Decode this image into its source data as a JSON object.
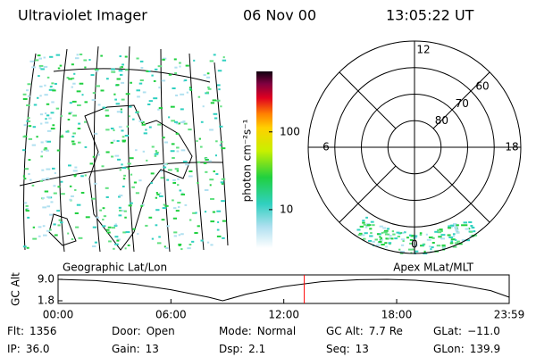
{
  "header": {
    "title": "Ultraviolet Imager",
    "date": "06 Nov 00",
    "time": "13:05:22 UT"
  },
  "map": {
    "label": "Geographic Lat/Lon"
  },
  "colorbar": {
    "label": "photon cm⁻²s⁻¹",
    "scale": "log",
    "range": [
      3.2,
      600
    ],
    "ticks": [
      100,
      10
    ]
  },
  "polar": {
    "label": "Apex MLat/MLT",
    "mlt_labels": [
      12,
      18,
      6,
      0
    ],
    "lat_rings": [
      80,
      70,
      60
    ],
    "lat_min": 50
  },
  "altitude": {
    "ylabel": "GC Alt",
    "ylim": [
      1.8,
      9
    ],
    "yticks": [
      {
        "value": 9,
        "label": "9.0"
      },
      {
        "value": 1.8,
        "label": "1.8"
      }
    ],
    "xlim": [
      0,
      23.983
    ],
    "xticks": [
      {
        "value": 0,
        "label": "00:00"
      },
      {
        "value": 6,
        "label": "06:00"
      },
      {
        "value": 12,
        "label": "12:00"
      },
      {
        "value": 18,
        "label": "18:00"
      },
      {
        "value": 23.983,
        "label": "23:59"
      }
    ],
    "x": [
      0,
      2,
      4,
      6,
      8,
      8.75,
      10,
      12,
      14,
      16,
      17.5,
      19,
      21,
      23,
      23.983
    ],
    "values": [
      9.0,
      8.6,
      7.4,
      5.5,
      3.0,
      1.8,
      4.0,
      6.6,
      8.2,
      8.9,
      9.0,
      8.7,
      7.5,
      5.2,
      3.0
    ],
    "current_time": 13.089,
    "current_color": "#ff0000"
  },
  "footer": {
    "rows": [
      [
        [
          "Flt:",
          "1356"
        ],
        [
          "Door:",
          "Open"
        ],
        [
          "Mode:",
          "Normal"
        ],
        [
          "GC Alt:",
          "7.7 Re"
        ],
        [
          "GLat:",
          "−11.0"
        ]
      ],
      [
        [
          "IP:",
          "36.0"
        ],
        [
          "Gain:",
          "13"
        ],
        [
          "Dsp:",
          "2.1"
        ],
        [
          "Seq:",
          "13"
        ],
        [
          "GLon:",
          "139.9"
        ]
      ]
    ]
  }
}
